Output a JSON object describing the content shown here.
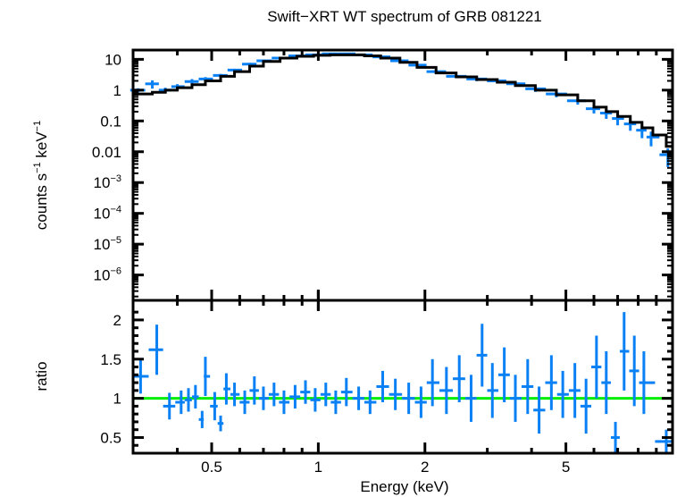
{
  "chart_data": [
    {
      "type": "scatter",
      "panel": "spectrum",
      "title": "Swift−XRT WT spectrum of GRB 081221",
      "xlabel": "Energy (keV)",
      "ylabel": "counts s⁻¹ keV⁻¹",
      "xscale": "log",
      "yscale": "log",
      "xlim": [
        0.3,
        10
      ],
      "ylim": [
        1.5e-07,
        20
      ],
      "x_tick_labels": [
        "0.5",
        "1",
        "2",
        "5"
      ],
      "x_ticks": [
        0.5,
        1,
        2,
        5
      ],
      "y_ticks": [
        10,
        1,
        0.1,
        0.01,
        0.001,
        0.0001,
        1e-05,
        1e-06
      ],
      "y_tick_labels": [
        {
          "base": "10",
          "exp": ""
        },
        {
          "base": "1",
          "exp": ""
        },
        {
          "base": "0.1",
          "exp": ""
        },
        {
          "base": "0.01",
          "exp": ""
        },
        {
          "base": "10",
          "exp": "−3"
        },
        {
          "base": "10",
          "exp": "−4"
        },
        {
          "base": "10",
          "exp": "−5"
        },
        {
          "base": "10",
          "exp": "−6"
        }
      ],
      "series": [
        {
          "name": "data",
          "color": "#0a80f5",
          "x": [
            0.31,
            0.34,
            0.37,
            0.4,
            0.44,
            0.48,
            0.53,
            0.58,
            0.64,
            0.7,
            0.78,
            0.87,
            0.97,
            1.08,
            1.2,
            1.35,
            1.5,
            1.7,
            1.9,
            2.15,
            2.45,
            2.8,
            3.2,
            3.6,
            4.1,
            4.7,
            5.4,
            6.0,
            6.5,
            7.0,
            7.6,
            8.2,
            8.7,
            9.7
          ],
          "y": [
            1.0,
            1.6,
            1.0,
            1.3,
            1.9,
            2.3,
            3.0,
            4.5,
            7.0,
            9.0,
            11,
            13,
            14,
            15,
            15,
            14,
            12,
            9.0,
            6.5,
            4.0,
            2.8,
            2.3,
            2.0,
            1.6,
            1.1,
            0.75,
            0.45,
            0.25,
            0.18,
            0.12,
            0.08,
            0.05,
            0.03,
            0.008
          ],
          "yerr_frac": [
            0.15,
            0.3,
            0.2,
            0.2,
            0.2,
            0.15,
            0.12,
            0.1,
            0.1,
            0.08,
            0.08,
            0.08,
            0.08,
            0.08,
            0.08,
            0.08,
            0.08,
            0.1,
            0.1,
            0.12,
            0.12,
            0.15,
            0.15,
            0.18,
            0.2,
            0.22,
            0.25,
            0.3,
            0.35,
            0.4,
            0.4,
            0.45,
            0.5,
            0.6
          ]
        },
        {
          "name": "model",
          "color": "#000000",
          "style": "step",
          "x": [
            0.3,
            0.34,
            0.37,
            0.4,
            0.44,
            0.48,
            0.53,
            0.58,
            0.64,
            0.7,
            0.78,
            0.87,
            0.97,
            1.08,
            1.2,
            1.35,
            1.5,
            1.7,
            1.9,
            2.15,
            2.45,
            2.8,
            3.2,
            3.6,
            4.1,
            4.7,
            5.4,
            6.0,
            6.5,
            7.0,
            7.6,
            8.2,
            8.8,
            9.6,
            10.0
          ],
          "y": [
            0.75,
            0.85,
            1.0,
            1.2,
            1.5,
            2.0,
            2.8,
            4.0,
            6.0,
            8.5,
            11,
            12.5,
            13.5,
            14,
            14,
            13,
            11,
            8.0,
            5.5,
            3.6,
            2.7,
            2.2,
            1.8,
            1.4,
            1.0,
            0.7,
            0.45,
            0.28,
            0.2,
            0.14,
            0.09,
            0.06,
            0.035,
            0.015,
            0.015
          ]
        }
      ]
    },
    {
      "type": "scatter",
      "panel": "ratio",
      "xlabel": "Energy (keV)",
      "ylabel": "ratio",
      "xscale": "log",
      "xlim": [
        0.3,
        10
      ],
      "ylim": [
        0.3,
        2.25
      ],
      "x_tick_labels": [
        "0.5",
        "1",
        "2",
        "5"
      ],
      "x_ticks": [
        0.5,
        1,
        2,
        5
      ],
      "y_tick_labels": [
        "0.5",
        "1",
        "1.5",
        "2"
      ],
      "y_ticks": [
        0.5,
        1,
        1.5,
        2
      ],
      "reference_line": {
        "y": 1,
        "color": "#00ee00"
      },
      "series": [
        {
          "name": "ratio",
          "color": "#0a80f5",
          "x": [
            0.315,
            0.35,
            0.38,
            0.41,
            0.43,
            0.45,
            0.47,
            0.48,
            0.51,
            0.53,
            0.55,
            0.58,
            0.62,
            0.66,
            0.7,
            0.75,
            0.8,
            0.86,
            0.92,
            0.98,
            1.05,
            1.12,
            1.2,
            1.3,
            1.4,
            1.52,
            1.65,
            1.8,
            1.95,
            2.1,
            2.3,
            2.5,
            2.7,
            2.9,
            3.1,
            3.35,
            3.6,
            3.9,
            4.2,
            4.55,
            4.9,
            5.3,
            5.7,
            6.1,
            6.5,
            6.9,
            7.3,
            7.8,
            8.3,
            9.6
          ],
          "y": [
            1.28,
            1.62,
            0.9,
            0.95,
            0.98,
            1.02,
            0.73,
            1.28,
            0.9,
            0.68,
            1.12,
            1.05,
            0.95,
            1.1,
            1.0,
            1.05,
            0.95,
            1.02,
            1.08,
            0.98,
            1.05,
            0.95,
            1.08,
            1.0,
            0.95,
            1.15,
            1.05,
            1.0,
            0.95,
            1.2,
            1.1,
            1.25,
            1.0,
            1.55,
            1.1,
            1.3,
            1.0,
            1.15,
            0.85,
            1.2,
            1.05,
            1.1,
            0.9,
            1.4,
            1.2,
            0.5,
            1.6,
            1.35,
            1.2,
            0.45
          ],
          "yerr": [
            0.22,
            0.32,
            0.17,
            0.15,
            0.15,
            0.15,
            0.11,
            0.25,
            0.18,
            0.1,
            0.2,
            0.15,
            0.15,
            0.18,
            0.15,
            0.15,
            0.15,
            0.15,
            0.15,
            0.15,
            0.15,
            0.15,
            0.18,
            0.15,
            0.15,
            0.2,
            0.2,
            0.2,
            0.2,
            0.3,
            0.3,
            0.3,
            0.3,
            0.4,
            0.35,
            0.35,
            0.3,
            0.35,
            0.3,
            0.35,
            0.3,
            0.35,
            0.35,
            0.4,
            0.4,
            0.2,
            0.5,
            0.45,
            0.4,
            0.15
          ]
        }
      ]
    }
  ]
}
